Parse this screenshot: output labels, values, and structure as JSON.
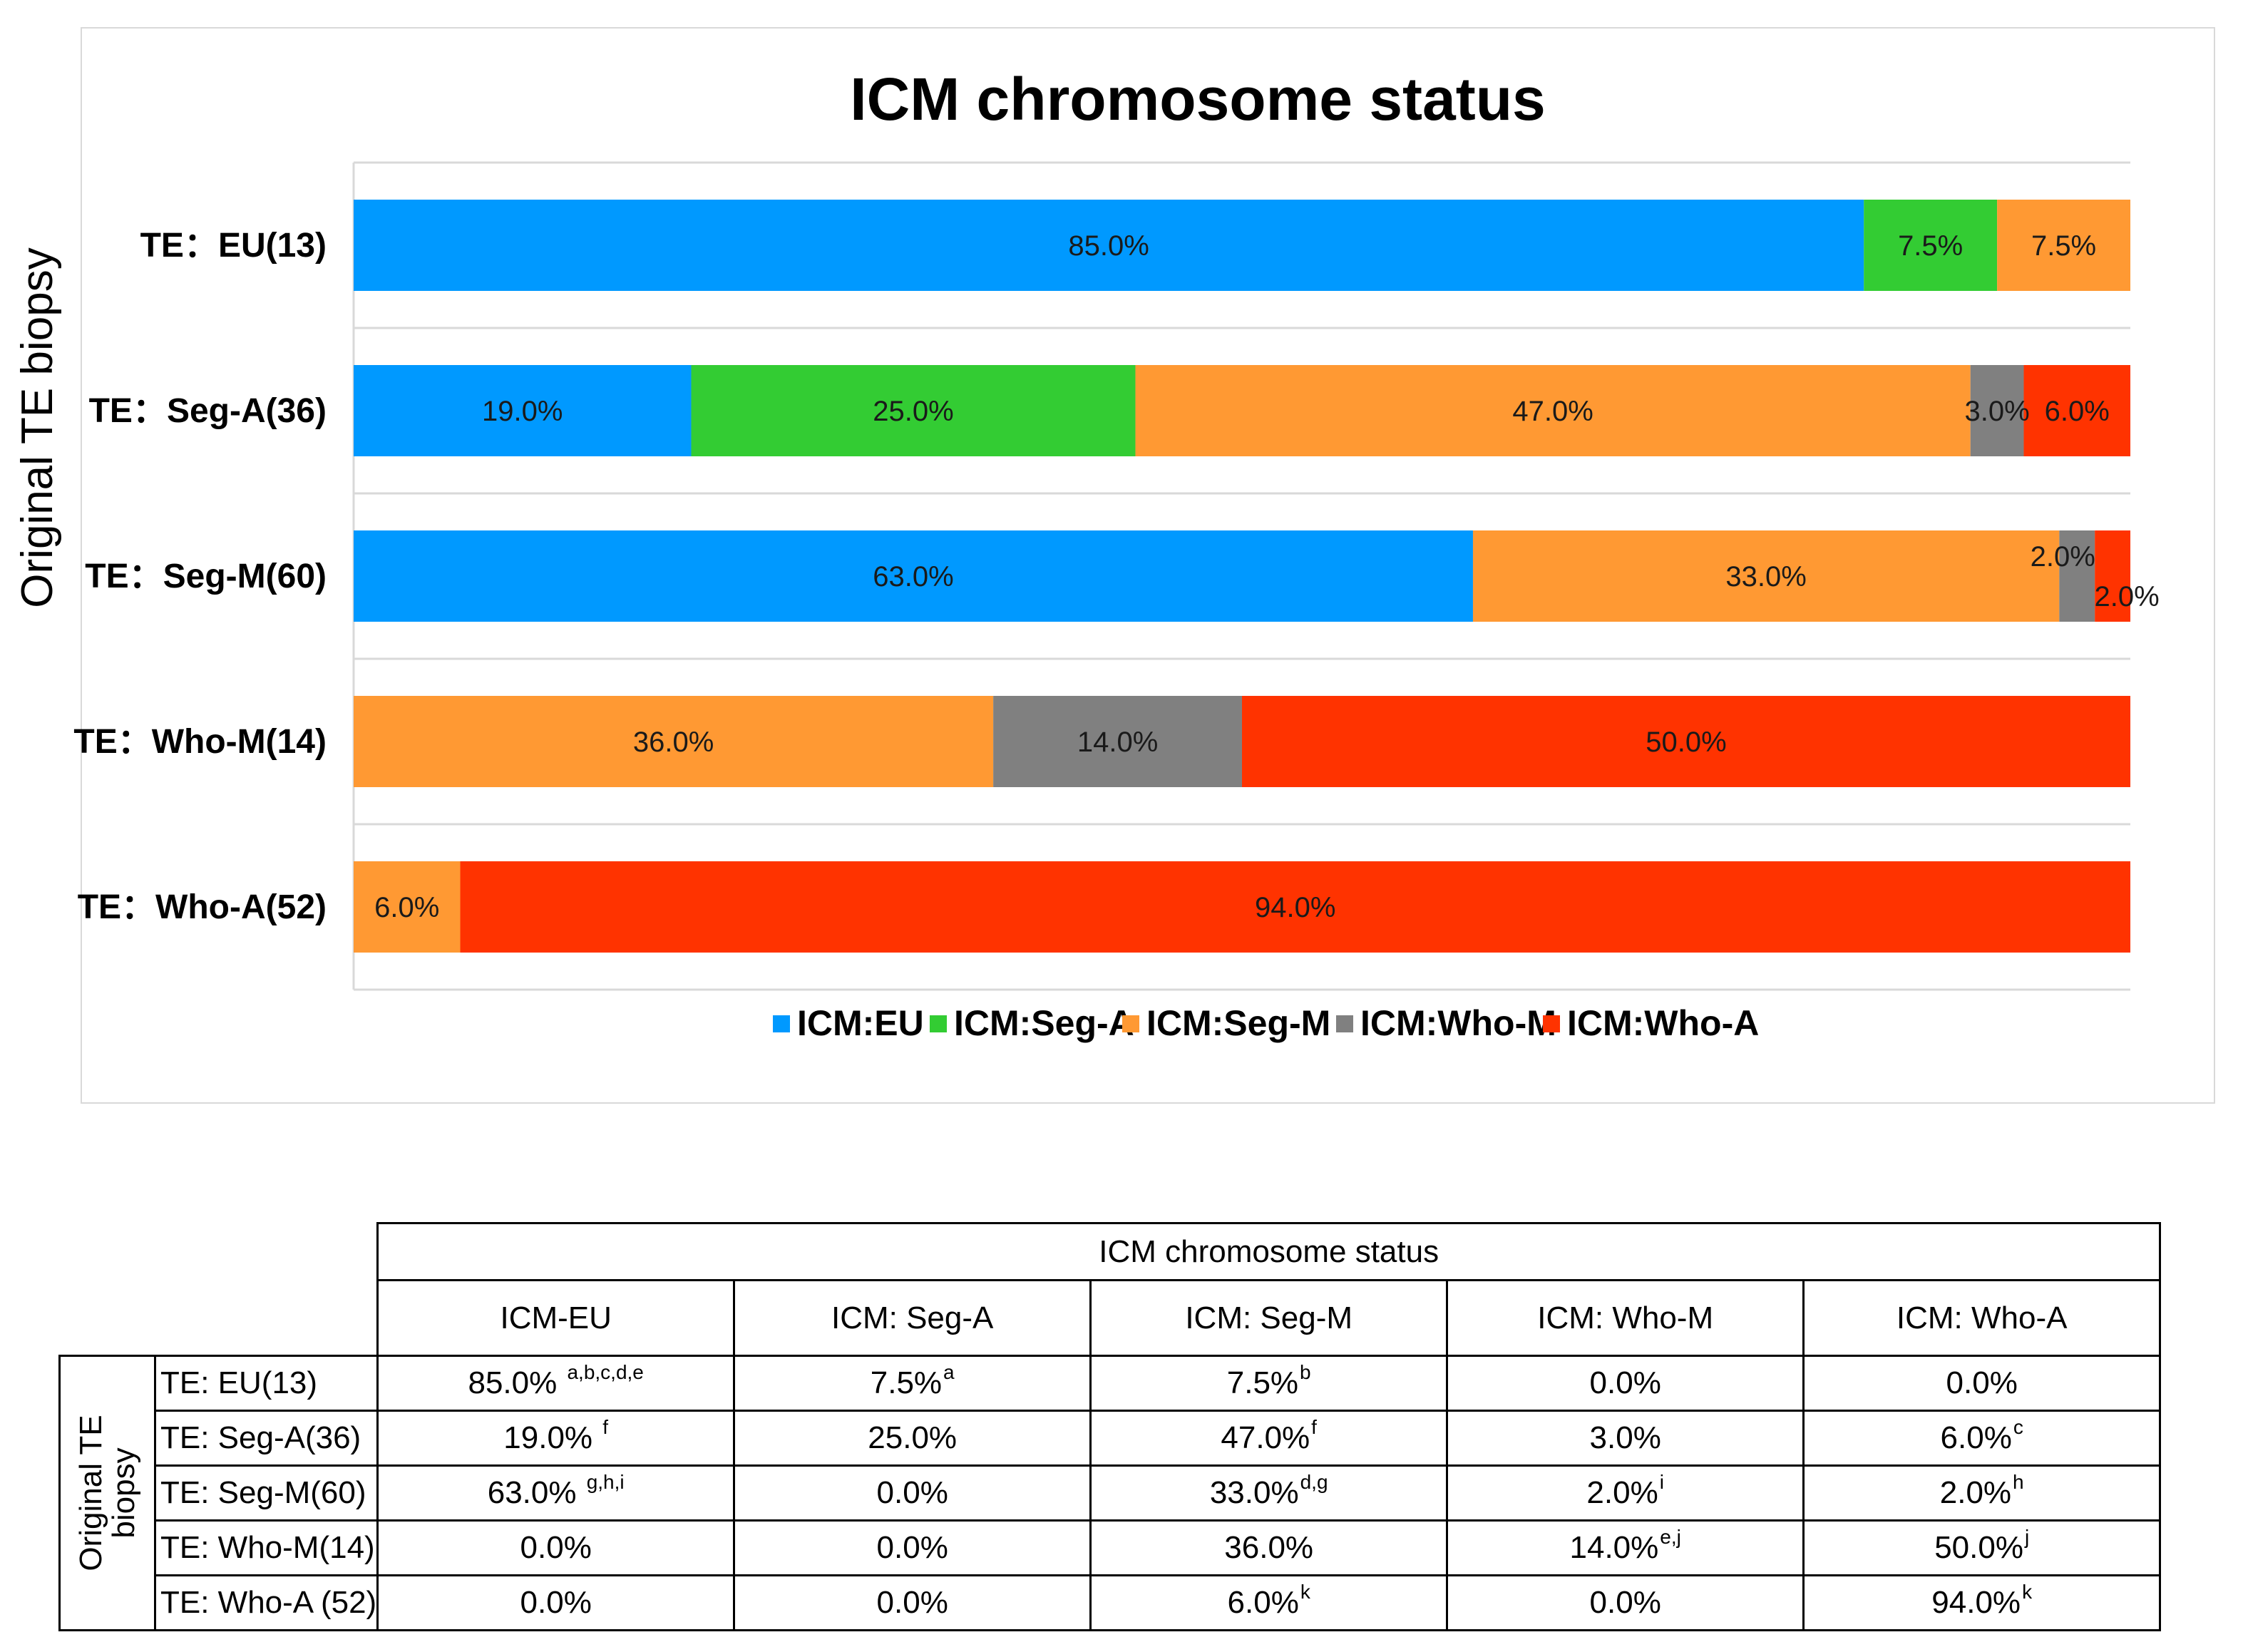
{
  "chart_data": {
    "type": "bar",
    "orientation": "horizontal",
    "stacked": "percent",
    "title": "ICM chromosome status",
    "ylabel": "Original TE biopsy",
    "xlabel": "",
    "xlim": [
      0,
      100
    ],
    "grid": false,
    "legend_position": "bottom",
    "categories": [
      "TE：EU(13)",
      "TE：Seg-A(36)",
      "TE：Seg-M(60)",
      "TE：Who-M(14)",
      "TE：Who-A(52)"
    ],
    "series": [
      {
        "name": "ICM:EU",
        "color": "#0099FF",
        "values": [
          85.0,
          19.0,
          63.0,
          0.0,
          0.0
        ],
        "labels": [
          "85.0%",
          "19.0%",
          "63.0%",
          "",
          ""
        ]
      },
      {
        "name": "ICM:Seg-A",
        "color": "#33CC33",
        "values": [
          7.5,
          25.0,
          0.0,
          0.0,
          0.0
        ],
        "labels": [
          "7.5%",
          "25.0%",
          "",
          "",
          ""
        ]
      },
      {
        "name": "ICM:Seg-M",
        "color": "#FF9933",
        "values": [
          7.5,
          47.0,
          33.0,
          36.0,
          6.0
        ],
        "labels": [
          "7.5%",
          "47.0%",
          "33.0%",
          "36.0%",
          "6.0%"
        ]
      },
      {
        "name": "ICM:Who-M",
        "color": "#808080",
        "values": [
          0.0,
          3.0,
          2.0,
          14.0,
          0.0
        ],
        "labels": [
          "",
          "3.0%",
          "2.0%",
          "14.0%",
          ""
        ]
      },
      {
        "name": "ICM:Who-A",
        "color": "#FF3300",
        "values": [
          0.0,
          6.0,
          2.0,
          50.0,
          94.0
        ],
        "labels": [
          "",
          "6.0%",
          "2.0%",
          "50.0%",
          "94.0%"
        ]
      }
    ]
  },
  "table": {
    "header_group": "ICM  chromosome status",
    "side_label_line1": "Original TE",
    "side_label_line2": "biopsy",
    "columns": [
      "ICM-EU",
      "ICM: Seg-A",
      "ICM: Seg-M",
      "ICM: Who-M",
      "ICM: Who-A"
    ],
    "rows": [
      {
        "label": "TE: EU(13)",
        "cells": [
          {
            "value": "85.0% ",
            "sup": "a,b,c,d,e"
          },
          {
            "value": "7.5%",
            "sup": "a"
          },
          {
            "value": "7.5%",
            "sup": "b"
          },
          {
            "value": "0.0%",
            "sup": ""
          },
          {
            "value": "0.0%",
            "sup": ""
          }
        ]
      },
      {
        "label": "TE: Seg-A(36)",
        "cells": [
          {
            "value": "19.0% ",
            "sup": "f"
          },
          {
            "value": "25.0%",
            "sup": ""
          },
          {
            "value": "47.0%",
            "sup": "f"
          },
          {
            "value": "3.0%",
            "sup": ""
          },
          {
            "value": "6.0%",
            "sup": "c"
          }
        ]
      },
      {
        "label": "TE: Seg-M(60)",
        "cells": [
          {
            "value": "63.0% ",
            "sup": "g,h,i"
          },
          {
            "value": "0.0%",
            "sup": ""
          },
          {
            "value": "33.0%",
            "sup": "d,g"
          },
          {
            "value": "2.0%",
            "sup": "i"
          },
          {
            "value": "2.0%",
            "sup": "h"
          }
        ]
      },
      {
        "label": "TE: Who-M(14)",
        "cells": [
          {
            "value": "0.0%",
            "sup": ""
          },
          {
            "value": "0.0%",
            "sup": ""
          },
          {
            "value": "36.0%",
            "sup": ""
          },
          {
            "value": "14.0%",
            "sup": "e,j"
          },
          {
            "value": "50.0%",
            "sup": "j"
          }
        ]
      },
      {
        "label": "TE: Who-A (52)",
        "cells": [
          {
            "value": "0.0%",
            "sup": ""
          },
          {
            "value": "0.0%",
            "sup": ""
          },
          {
            "value": "6.0%",
            "sup": "k"
          },
          {
            "value": "0.0%",
            "sup": ""
          },
          {
            "value": "94.0%",
            "sup": "k"
          }
        ]
      }
    ]
  }
}
